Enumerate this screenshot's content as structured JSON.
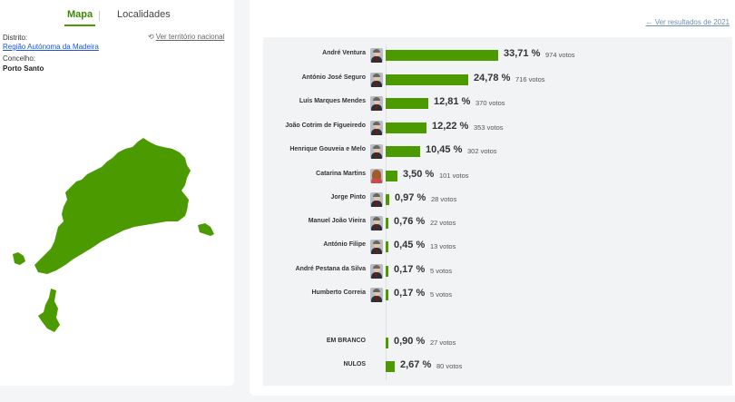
{
  "left": {
    "tabs": {
      "map": "Mapa",
      "localities": "Localidades"
    },
    "district_label": "Distrito:",
    "district_value": "Região Autónoma da Madeira",
    "council_label": "Concelho:",
    "council_value": "Porto Santo",
    "national_link": "Ver território nacional",
    "map_color": "#4a9a00"
  },
  "right": {
    "previous_link": "← Ver resultados de 2021",
    "bar_color": "#4a9a00",
    "rows": [
      {
        "name": "André Ventura",
        "pct": "33,71 %",
        "votes": "974 votos",
        "value": 33.71,
        "avatar": "male"
      },
      {
        "name": "António José Seguro",
        "pct": "24,78 %",
        "votes": "716 votos",
        "value": 24.78,
        "avatar": "male"
      },
      {
        "name": "Luís Marques Mendes",
        "pct": "12,81 %",
        "votes": "370 votos",
        "value": 12.81,
        "avatar": "male"
      },
      {
        "name": "João Cotrim de Figueiredo",
        "pct": "12,22 %",
        "votes": "353 votos",
        "value": 12.22,
        "avatar": "male"
      },
      {
        "name": "Henrique Gouveia e Melo",
        "pct": "10,45 %",
        "votes": "302 votos",
        "value": 10.45,
        "avatar": "male"
      },
      {
        "name": "Catarina Martins",
        "pct": "3,50 %",
        "votes": "101 votos",
        "value": 3.5,
        "avatar": "female"
      },
      {
        "name": "Jorge Pinto",
        "pct": "0,97 %",
        "votes": "28 votos",
        "value": 0.97,
        "avatar": "male"
      },
      {
        "name": "Manuel João Vieira",
        "pct": "0,76 %",
        "votes": "22 votos",
        "value": 0.76,
        "avatar": "male"
      },
      {
        "name": "António Filipe",
        "pct": "0,45 %",
        "votes": "13 votos",
        "value": 0.45,
        "avatar": "male"
      },
      {
        "name": "André Pestana da Silva",
        "pct": "0,17 %",
        "votes": "5 votos",
        "value": 0.17,
        "avatar": "male"
      },
      {
        "name": "Humberto Correia",
        "pct": "0,17 %",
        "votes": "5 votos",
        "value": 0.17,
        "avatar": "male"
      },
      {
        "name": "EM BRANCO",
        "pct": "0,90 %",
        "votes": "27 votos",
        "value": 0.9,
        "avatar": "none"
      },
      {
        "name": "NULOS",
        "pct": "2,67 %",
        "votes": "80 votos",
        "value": 2.67,
        "avatar": "none"
      }
    ]
  }
}
